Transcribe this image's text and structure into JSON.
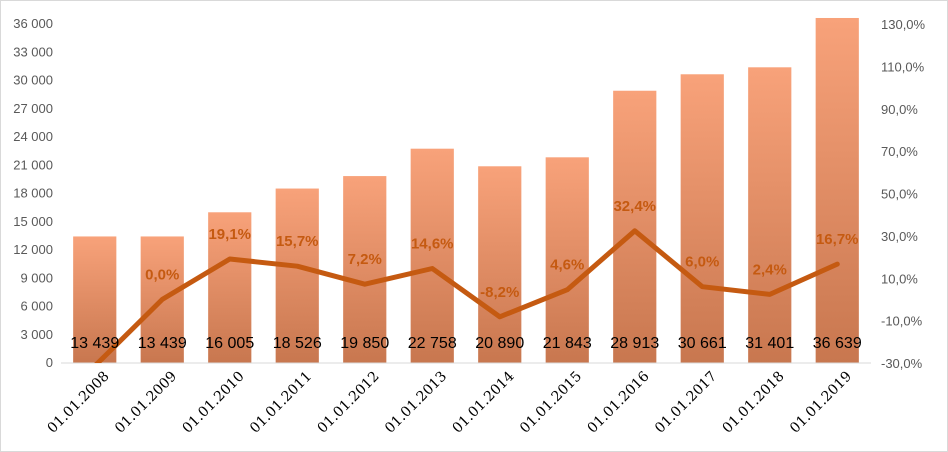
{
  "chart_data": {
    "type": "bar",
    "categories": [
      "01.01.2008",
      "01.01.2009",
      "01.01.2010",
      "01.01.2011",
      "01.01.2012",
      "01.01.2013",
      "01.01.2014",
      "01.01.2015",
      "01.01.2016",
      "01.01.2017",
      "01.01.2018",
      "01.01.2019"
    ],
    "series": [
      {
        "type": "bar",
        "axis": "left",
        "values": [
          13439,
          13439,
          16005,
          18526,
          19850,
          22758,
          20890,
          21843,
          28913,
          30661,
          31401,
          36639
        ],
        "labels": [
          "13 439",
          "13 439",
          "16 005",
          "18 526",
          "19 850",
          "22 758",
          "20 890",
          "21 843",
          "28 913",
          "30 661",
          "31 401",
          "36 639"
        ],
        "color_top": "#f8a27a",
        "color_bottom": "#c8774f"
      },
      {
        "type": "line",
        "axis": "right",
        "values": [
          -31.4,
          0.0,
          19.1,
          15.7,
          7.2,
          14.6,
          -8.2,
          4.6,
          32.4,
          6.0,
          2.4,
          16.7
        ],
        "labels": [
          "",
          "0,0%",
          "19,1%",
          "15,7%",
          "7,2%",
          "14,6%",
          "-8,2%",
          "4,6%",
          "32,4%",
          "6,0%",
          "2,4%",
          "16,7%"
        ],
        "color": "#c55a11"
      }
    ],
    "y_left": {
      "ylim": [
        0,
        36000
      ],
      "ticks": [
        0,
        3000,
        6000,
        9000,
        12000,
        15000,
        18000,
        21000,
        24000,
        27000,
        30000,
        33000,
        36000
      ],
      "tick_labels": [
        "0",
        "3 000",
        "6 000",
        "9 000",
        "12 000",
        "15 000",
        "18 000",
        "21 000",
        "24 000",
        "27 000",
        "30 000",
        "33 000",
        "36 000"
      ]
    },
    "y_right": {
      "ylim": [
        -30,
        130
      ],
      "ticks": [
        -30,
        -10,
        10,
        30,
        50,
        70,
        90,
        110,
        130
      ],
      "tick_labels": [
        "-30,0%",
        "-10,0%",
        "10,0%",
        "30,0%",
        "50,0%",
        "70,0%",
        "90,0%",
        "110,0%",
        "130,0%"
      ]
    },
    "grid": false,
    "legend": "none"
  }
}
